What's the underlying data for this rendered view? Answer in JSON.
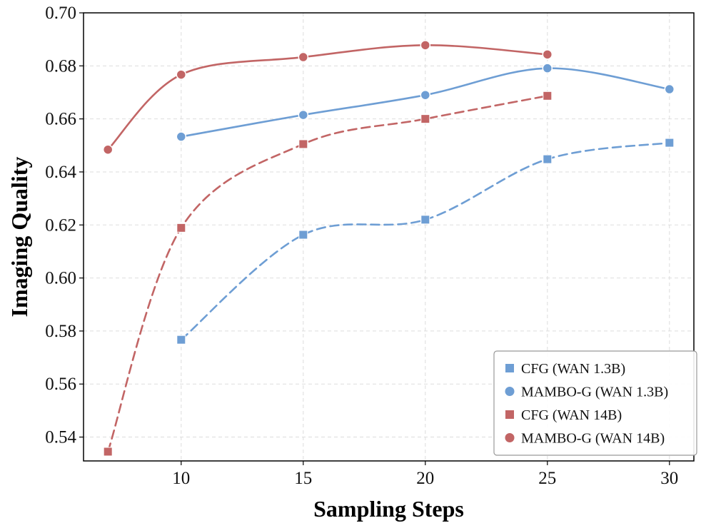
{
  "chart_data": {
    "type": "line",
    "title": "",
    "xlabel": "Sampling Steps",
    "ylabel": "Imaging Quality",
    "xlim": [
      6,
      31
    ],
    "ylim": [
      0.531,
      0.7
    ],
    "x_ticks": [
      10,
      15,
      20,
      25,
      30
    ],
    "x_tick_labels": [
      "10",
      "15",
      "20",
      "25",
      "30"
    ],
    "y_ticks": [
      0.54,
      0.56,
      0.58,
      0.6,
      0.62,
      0.64,
      0.66,
      0.68,
      0.7
    ],
    "y_tick_labels": [
      "0.54",
      "0.56",
      "0.58",
      "0.60",
      "0.62",
      "0.64",
      "0.66",
      "0.68",
      "0.70"
    ],
    "grid": true,
    "legend_position": "bottom-right",
    "series": [
      {
        "name": "CFG (WAN 1.3B)",
        "color": "#6e9ed4",
        "marker": "square",
        "line_style": "dashed",
        "x": [
          10,
          15,
          20,
          25,
          30
        ],
        "y": [
          0.5767,
          0.6163,
          0.622,
          0.6448,
          0.651
        ]
      },
      {
        "name": "MAMBO-G (WAN 1.3B)",
        "color": "#6e9ed4",
        "marker": "circle",
        "line_style": "solid",
        "x": [
          10,
          15,
          20,
          25,
          30
        ],
        "y": [
          0.6533,
          0.6615,
          0.669,
          0.6791,
          0.6712
        ]
      },
      {
        "name": "CFG (WAN 14B)",
        "color": "#c26565",
        "marker": "square",
        "line_style": "dashed",
        "x": [
          7,
          10,
          15,
          20,
          25
        ],
        "y": [
          0.5345,
          0.6189,
          0.6505,
          0.66,
          0.6687
        ]
      },
      {
        "name": "MAMBO-G (WAN 14B)",
        "color": "#c26565",
        "marker": "circle",
        "line_style": "solid",
        "x": [
          7,
          10,
          15,
          20,
          25
        ],
        "y": [
          0.6484,
          0.6767,
          0.6833,
          0.6878,
          0.6843
        ]
      }
    ]
  }
}
